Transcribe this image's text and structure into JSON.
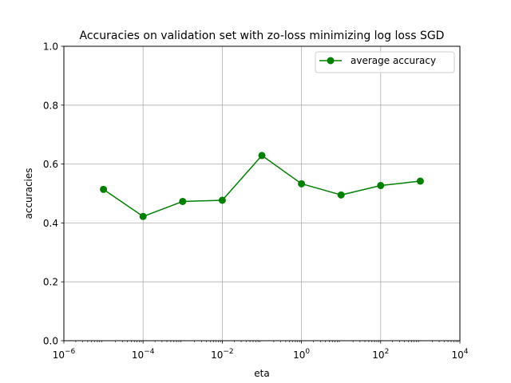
{
  "chart_data": {
    "type": "line",
    "title": "Accuracies on validation set with zo-loss minimizing log loss SGD",
    "xlabel": "eta",
    "ylabel": "accuracies",
    "x_scale": "log",
    "xlim": [
      1e-06,
      10000
    ],
    "ylim": [
      0.0,
      1.0
    ],
    "grid": true,
    "legend_position": "top-right",
    "x_ticks": [
      {
        "value": 1e-06,
        "base": "10",
        "exp": "−6"
      },
      {
        "value": 0.0001,
        "base": "10",
        "exp": "−4"
      },
      {
        "value": 0.01,
        "base": "10",
        "exp": "−2"
      },
      {
        "value": 1,
        "base": "10",
        "exp": "0"
      },
      {
        "value": 100,
        "base": "10",
        "exp": "2"
      },
      {
        "value": 10000,
        "base": "10",
        "exp": "4"
      }
    ],
    "y_ticks": [
      {
        "value": 0.0,
        "label": "0.0"
      },
      {
        "value": 0.2,
        "label": "0.2"
      },
      {
        "value": 0.4,
        "label": "0.4"
      },
      {
        "value": 0.6,
        "label": "0.6"
      },
      {
        "value": 0.8,
        "label": "0.8"
      },
      {
        "value": 1.0,
        "label": "1.0"
      }
    ],
    "series": [
      {
        "name": "average accuracy",
        "color": "#008000",
        "marker": "circle",
        "x": [
          1e-05,
          0.0001,
          0.001,
          0.01,
          0.1,
          1,
          10,
          100,
          1000
        ],
        "y": [
          0.514,
          0.422,
          0.473,
          0.477,
          0.629,
          0.533,
          0.495,
          0.527,
          0.542
        ]
      }
    ]
  }
}
